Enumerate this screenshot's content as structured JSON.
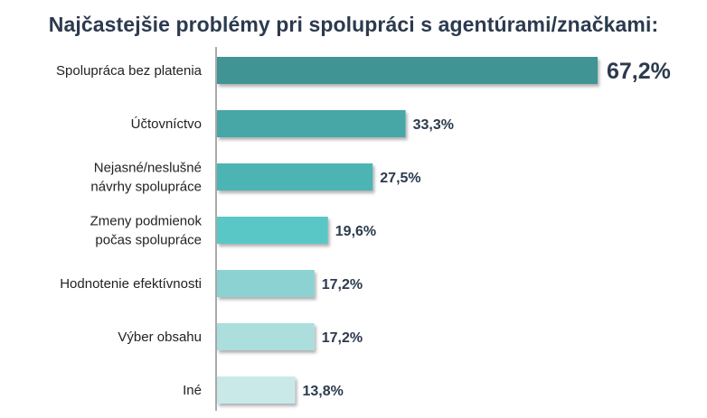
{
  "chart_data": {
    "type": "bar",
    "orientation": "horizontal",
    "title": "Najčastejšie problémy pri spolupráci s agentúrami/značkami:",
    "xlabel": "",
    "ylabel": "",
    "xlim": [
      0,
      67.2
    ],
    "grid": false,
    "categories": [
      [
        "Spolupráca bez platenia"
      ],
      [
        "Účtovníctvo"
      ],
      [
        "Nejasné/neslušné",
        "návrhy spolupráce"
      ],
      [
        "Zmeny podmienok",
        "počas spolupráce"
      ],
      [
        "Hodnotenie efektívnosti"
      ],
      [
        "Výber obsahu"
      ],
      [
        "Iné"
      ]
    ],
    "values": [
      67.2,
      33.3,
      27.5,
      19.6,
      17.2,
      17.2,
      13.8
    ],
    "value_labels": [
      "67,2%",
      "33,3%",
      "27,5%",
      "19,6%",
      "17,2%",
      "17,2%",
      "13,8%"
    ],
    "colors": [
      "#3f9494",
      "#46a6a6",
      "#4db4b4",
      "#5ac7c7",
      "#8cd2d2",
      "#acdede",
      "#c9e9e9"
    ]
  }
}
